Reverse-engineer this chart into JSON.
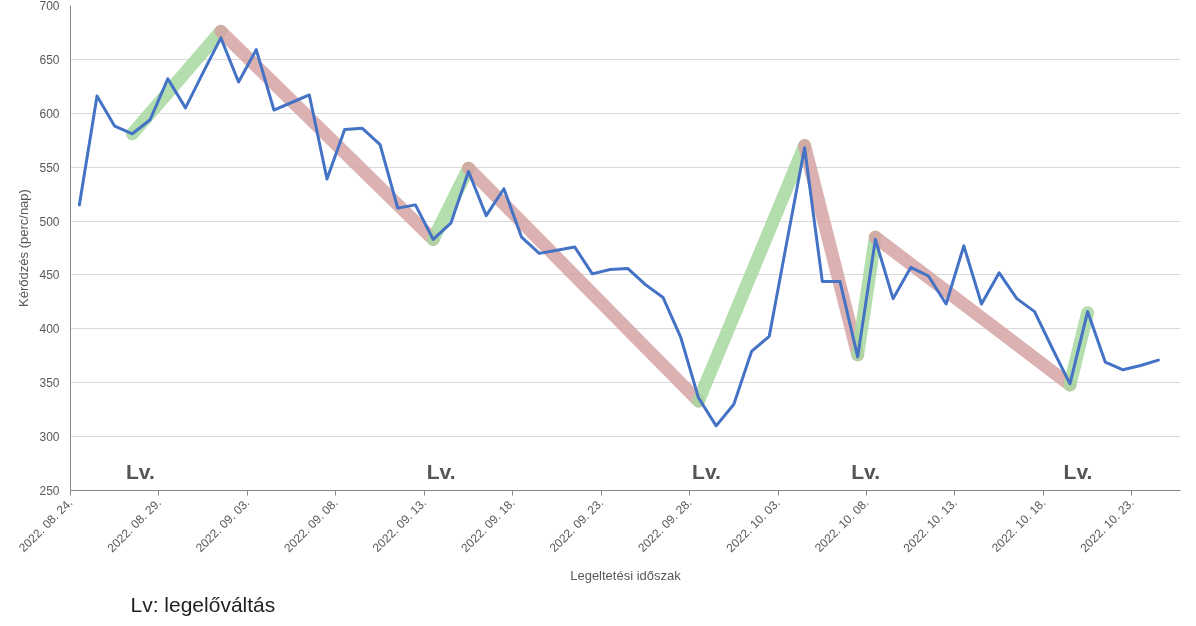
{
  "chart_data": {
    "type": "line",
    "xlabel": "Legeltetési időszak",
    "ylabel": "Kérődzés (perc/nap)",
    "x": [
      "2022-08-24T12:00",
      "2022-08-25T12:00",
      "2022-08-26T12:00",
      "2022-08-27T12:00",
      "2022-08-28T12:00",
      "2022-08-29T12:00",
      "2022-08-30T12:00",
      "2022-08-31T12:00",
      "2022-09-01T12:00",
      "2022-09-02T12:00",
      "2022-09-03T12:00",
      "2022-09-04T12:00",
      "2022-09-05T12:00",
      "2022-09-06T12:00",
      "2022-09-07T12:00",
      "2022-09-08T12:00",
      "2022-09-09T12:00",
      "2022-09-10T12:00",
      "2022-09-11T12:00",
      "2022-09-12T12:00",
      "2022-09-13T12:00",
      "2022-09-14T12:00",
      "2022-09-15T12:00",
      "2022-09-16T12:00",
      "2022-09-17T12:00",
      "2022-09-18T12:00",
      "2022-09-19T12:00",
      "2022-09-20T12:00",
      "2022-09-21T12:00",
      "2022-09-22T12:00",
      "2022-09-23T12:00",
      "2022-09-24T12:00",
      "2022-09-25T12:00",
      "2022-09-26T12:00",
      "2022-09-27T12:00",
      "2022-09-28T12:00",
      "2022-09-29T12:00",
      "2022-09-30T12:00",
      "2022-10-01T12:00",
      "2022-10-02T12:00",
      "2022-10-03T12:00",
      "2022-10-04T12:00",
      "2022-10-05T12:00",
      "2022-10-06T12:00",
      "2022-10-07T12:00",
      "2022-10-08T12:00",
      "2022-10-09T12:00",
      "2022-10-10T12:00",
      "2022-10-11T12:00",
      "2022-10-12T12:00",
      "2022-10-13T12:00",
      "2022-10-14T12:00",
      "2022-10-15T12:00",
      "2022-10-16T12:00",
      "2022-10-17T12:00",
      "2022-10-18T12:00",
      "2022-10-19T12:00",
      "2022-10-20T12:00",
      "2022-10-21T12:00",
      "2022-10-22T12:00",
      "2022-10-23T12:00",
      "2022-10-24T12:00"
    ],
    "series": [
      {
        "color": "#a8d8a0",
        "x": [
          "2022-08-27T12:00",
          "2022-09-01T12:00"
        ],
        "values": [
          581,
          676
        ]
      },
      {
        "color": "#d6a3a3",
        "x": [
          "2022-09-01T12:00",
          "2022-09-13T12:00"
        ],
        "values": [
          676,
          483
        ]
      },
      {
        "color": "#a8d8a0",
        "x": [
          "2022-09-13T12:00",
          "2022-09-15T12:00"
        ],
        "values": [
          483,
          549
        ]
      },
      {
        "color": "#d6a3a3",
        "x": [
          "2022-09-15T12:00",
          "2022-09-28T12:00"
        ],
        "values": [
          549,
          333
        ]
      },
      {
        "color": "#a8d8a0",
        "x": [
          "2022-09-28T12:00",
          "2022-10-04T12:00"
        ],
        "values": [
          333,
          570
        ]
      },
      {
        "color": "#d6a3a3",
        "x": [
          "2022-10-04T12:00",
          "2022-10-07T12:00"
        ],
        "values": [
          570,
          376
        ]
      },
      {
        "color": "#a8d8a0",
        "x": [
          "2022-10-07T12:00",
          "2022-10-08T12:00"
        ],
        "values": [
          376,
          485
        ]
      },
      {
        "color": "#d6a3a3",
        "x": [
          "2022-10-08T12:00",
          "2022-10-19T12:00"
        ],
        "values": [
          485,
          348
        ]
      },
      {
        "color": "#a8d8a0",
        "x": [
          "2022-10-19T12:00",
          "2022-10-20T12:00"
        ],
        "values": [
          348,
          415
        ]
      },
      {
        "color": "#4472c4",
        "values": [
          515,
          616,
          588,
          581,
          594,
          632,
          605,
          638,
          670,
          629,
          659,
          603,
          610,
          617,
          539,
          585,
          586,
          571,
          512,
          515,
          483,
          498,
          546,
          505,
          530,
          485,
          470,
          473,
          476,
          451,
          455,
          456,
          441,
          429,
          392,
          336,
          310,
          330,
          379,
          393,
          481,
          568,
          444,
          444,
          374,
          483,
          428,
          457,
          449,
          423,
          477,
          423,
          452,
          428,
          416,
          382,
          349,
          416,
          369,
          362,
          366,
          371
        ]
      }
    ],
    "xlim": [
      "2022-08-24",
      "2022-10-25T18:00"
    ],
    "xticks": [
      {
        "value": "2022-08-24",
        "label": "2022. 08. 24."
      },
      {
        "value": "2022-08-29",
        "label": "2022. 08. 29."
      },
      {
        "value": "2022-09-03",
        "label": "2022. 09. 03."
      },
      {
        "value": "2022-09-08",
        "label": "2022. 09. 08."
      },
      {
        "value": "2022-09-13",
        "label": "2022. 09. 13."
      },
      {
        "value": "2022-09-18",
        "label": "2022. 09. 18."
      },
      {
        "value": "2022-09-23",
        "label": "2022. 09. 23."
      },
      {
        "value": "2022-09-28",
        "label": "2022. 09. 28."
      },
      {
        "value": "2022-10-03",
        "label": "2022. 10. 03."
      },
      {
        "value": "2022-10-08",
        "label": "2022. 10. 08."
      },
      {
        "value": "2022-10-13",
        "label": "2022. 10. 13."
      },
      {
        "value": "2022-10-18",
        "label": "2022. 10. 18."
      },
      {
        "value": "2022-10-23",
        "label": "2022. 10. 23."
      }
    ],
    "ylim": [
      250,
      700
    ],
    "yticks": [
      250,
      300,
      350,
      400,
      450,
      500,
      550,
      600,
      650,
      700
    ],
    "grid": "y",
    "line_style": "solid",
    "annotations": [
      "Lv.",
      "Lv.",
      "Lv.",
      "Lv.",
      "Lv.",
      "Lv: legelőváltás"
    ]
  }
}
